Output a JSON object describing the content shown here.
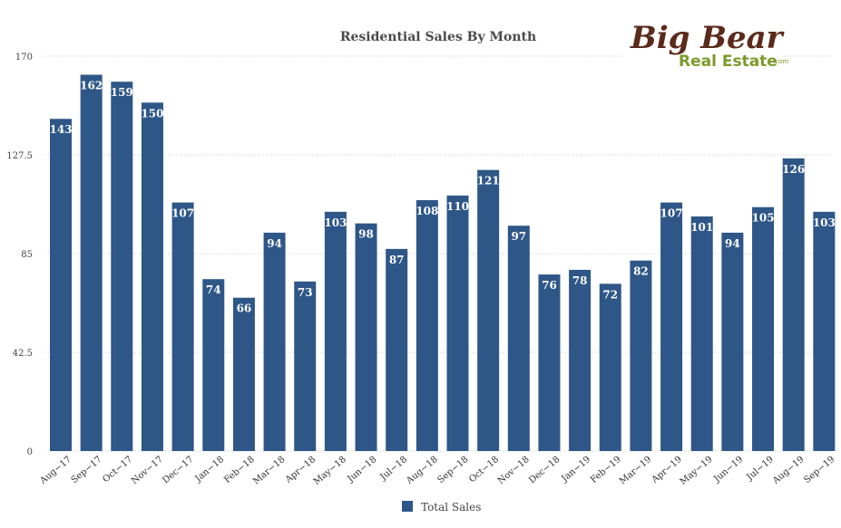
{
  "chart_data": {
    "type": "bar",
    "title": "Residential Sales By Month",
    "categories": [
      "Aug−17",
      "Sep−17",
      "Oct−17",
      "Nov−17",
      "Dec−17",
      "Jan−18",
      "Feb−18",
      "Mar−18",
      "Apr−18",
      "May−18",
      "Jun−18",
      "Jul−18",
      "Aug−18",
      "Sep−18",
      "Oct−18",
      "Nov−18",
      "Dec−18",
      "Jan−19",
      "Feb−19",
      "Mar−19",
      "Apr−19",
      "May−19",
      "Jun−19",
      "Jul−19",
      "Aug−19",
      "Sep−19"
    ],
    "series": [
      {
        "name": "Total Sales",
        "values": [
          143,
          162,
          159,
          150,
          107,
          74,
          66,
          94,
          73,
          103,
          98,
          87,
          108,
          110,
          121,
          97,
          76,
          78,
          72,
          82,
          107,
          101,
          94,
          105,
          126,
          103
        ]
      }
    ],
    "yticks": [
      "0",
      "42.5",
      "85",
      "127.5",
      "170"
    ],
    "ylim": [
      0,
      170
    ],
    "grid": true,
    "legend_position": "bottom-center",
    "colors": {
      "bar": "#2e5788",
      "grid": "#c8c8c8"
    }
  },
  "logo": {
    "line1": "Big Bear",
    "line2": "Real Estate",
    "suffix": ".com"
  }
}
